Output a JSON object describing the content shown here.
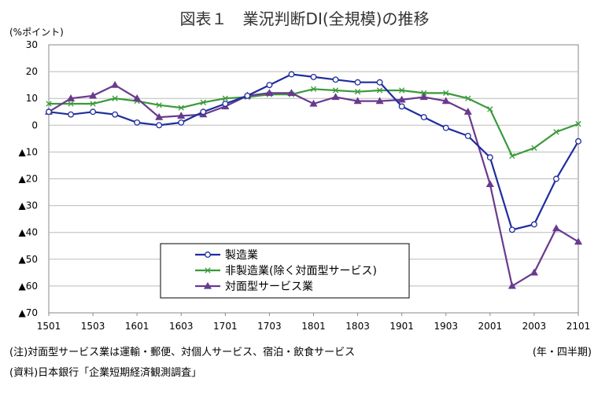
{
  "chart_data": {
    "type": "line",
    "title": "図表１　業況判断DI(全規模)の推移",
    "ylabel": "(%ポイント)",
    "xlabel": "(年・四半期)",
    "ylim": [
      -70,
      30
    ],
    "y_ticks": [
      30,
      20,
      10,
      0,
      -10,
      -20,
      -30,
      -40,
      -50,
      -60,
      -70
    ],
    "y_tick_labels": [
      "30",
      "20",
      "10",
      "0",
      "▲10",
      "▲20",
      "▲30",
      "▲40",
      "▲50",
      "▲60",
      "▲70"
    ],
    "x_tick_labels": [
      "1501",
      "1503",
      "1601",
      "1603",
      "1701",
      "1703",
      "1801",
      "1803",
      "1901",
      "1903",
      "2001",
      "2003",
      "2101"
    ],
    "x": [
      "1501",
      "1502",
      "1503",
      "1504",
      "1601",
      "1602",
      "1603",
      "1604",
      "1701",
      "1702",
      "1703",
      "1704",
      "1801",
      "1802",
      "1803",
      "1804",
      "1901",
      "1902",
      "1903",
      "1904",
      "2001",
      "2002",
      "2003",
      "2004",
      "2101"
    ],
    "grid": true,
    "legend_position": "bottom-center",
    "series": [
      {
        "name": "製造業",
        "color": "#1f2d9e",
        "marker": "circle",
        "values": [
          5,
          4,
          5,
          4,
          1,
          0,
          1,
          5,
          8,
          11,
          15,
          19,
          18,
          17,
          16,
          16,
          7,
          3,
          -1,
          -4,
          -12,
          -39,
          -37,
          -20,
          -6
        ]
      },
      {
        "name": "非製造業(除く対面型サービス)",
        "color": "#3a9a3a",
        "marker": "x",
        "values": [
          8,
          8,
          8,
          10,
          9,
          7.5,
          6.5,
          8.5,
          10,
          10.5,
          11.5,
          11.5,
          13.5,
          13,
          12.5,
          13,
          13,
          12,
          12,
          10,
          6,
          -11.5,
          -8.5,
          -2.5,
          0.5
        ]
      },
      {
        "name": "対面型サービス業",
        "color": "#6a3a8e",
        "marker": "triangle",
        "values": [
          5,
          10,
          11,
          15,
          10,
          3,
          3.5,
          4,
          7,
          11,
          12,
          12,
          8,
          10.5,
          9,
          9,
          9.5,
          10.5,
          9,
          5,
          -22,
          -60,
          -55,
          -38.5,
          -43.5
        ]
      }
    ]
  },
  "footer": {
    "note": "(注)対面型サービス業は運輸・郵便、対個人サービス、宿泊・飲食サービス",
    "source": "(資料)日本銀行「企業短期経済観測調査」"
  }
}
